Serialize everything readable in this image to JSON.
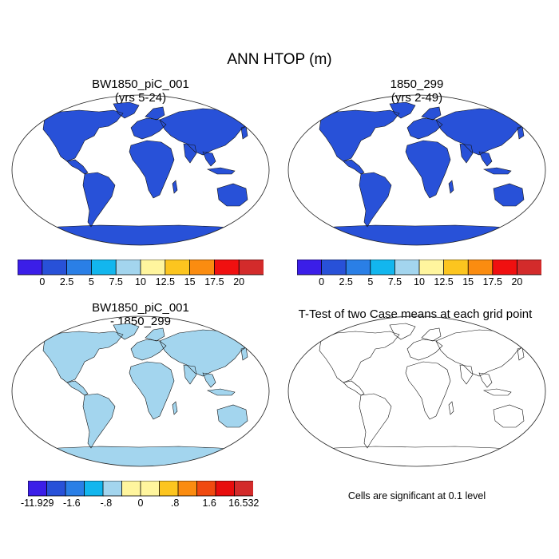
{
  "title": "ANN HTOP (m)",
  "panels": [
    {
      "title_line1": "BW1850_piC_001",
      "title_line2": "(yrs 5-24)",
      "style": "field"
    },
    {
      "title_line1": "1850_299",
      "title_line2": "(yrs 2-49)",
      "style": "field"
    },
    {
      "title_line1": "BW1850_piC_001",
      "title_line2": "- 1850_299",
      "style": "diff"
    },
    {
      "title_line1": "T-Test of two Case means at each grid point",
      "title_line2": "",
      "style": "ttest"
    }
  ],
  "colorbars": {
    "field": {
      "colors": [
        "#3b1ee8",
        "#2851d8",
        "#2a7fe6",
        "#12b6ee",
        "#a3d5ee",
        "#fff59e",
        "#fcc51f",
        "#fb8c10",
        "#f01010",
        "#d32b2b"
      ],
      "labels": [
        "0",
        "2.5",
        "5",
        "7.5",
        "10",
        "12.5",
        "15",
        "17.5",
        "20"
      ]
    },
    "diff": {
      "colors": [
        "#3b1ee8",
        "#2851d8",
        "#2a7fe6",
        "#12b6ee",
        "#a3d5ee",
        "#fff59e",
        "#fff59e",
        "#fcc51f",
        "#fb8c10",
        "#f04a10",
        "#e80d0d",
        "#d32b2b"
      ],
      "labels": [
        "-11.929",
        "-1.6",
        "-.8",
        "0",
        ".8",
        "1.6",
        "16.532"
      ]
    }
  },
  "ttest_note": "Cells are significant at 0.1 level"
}
